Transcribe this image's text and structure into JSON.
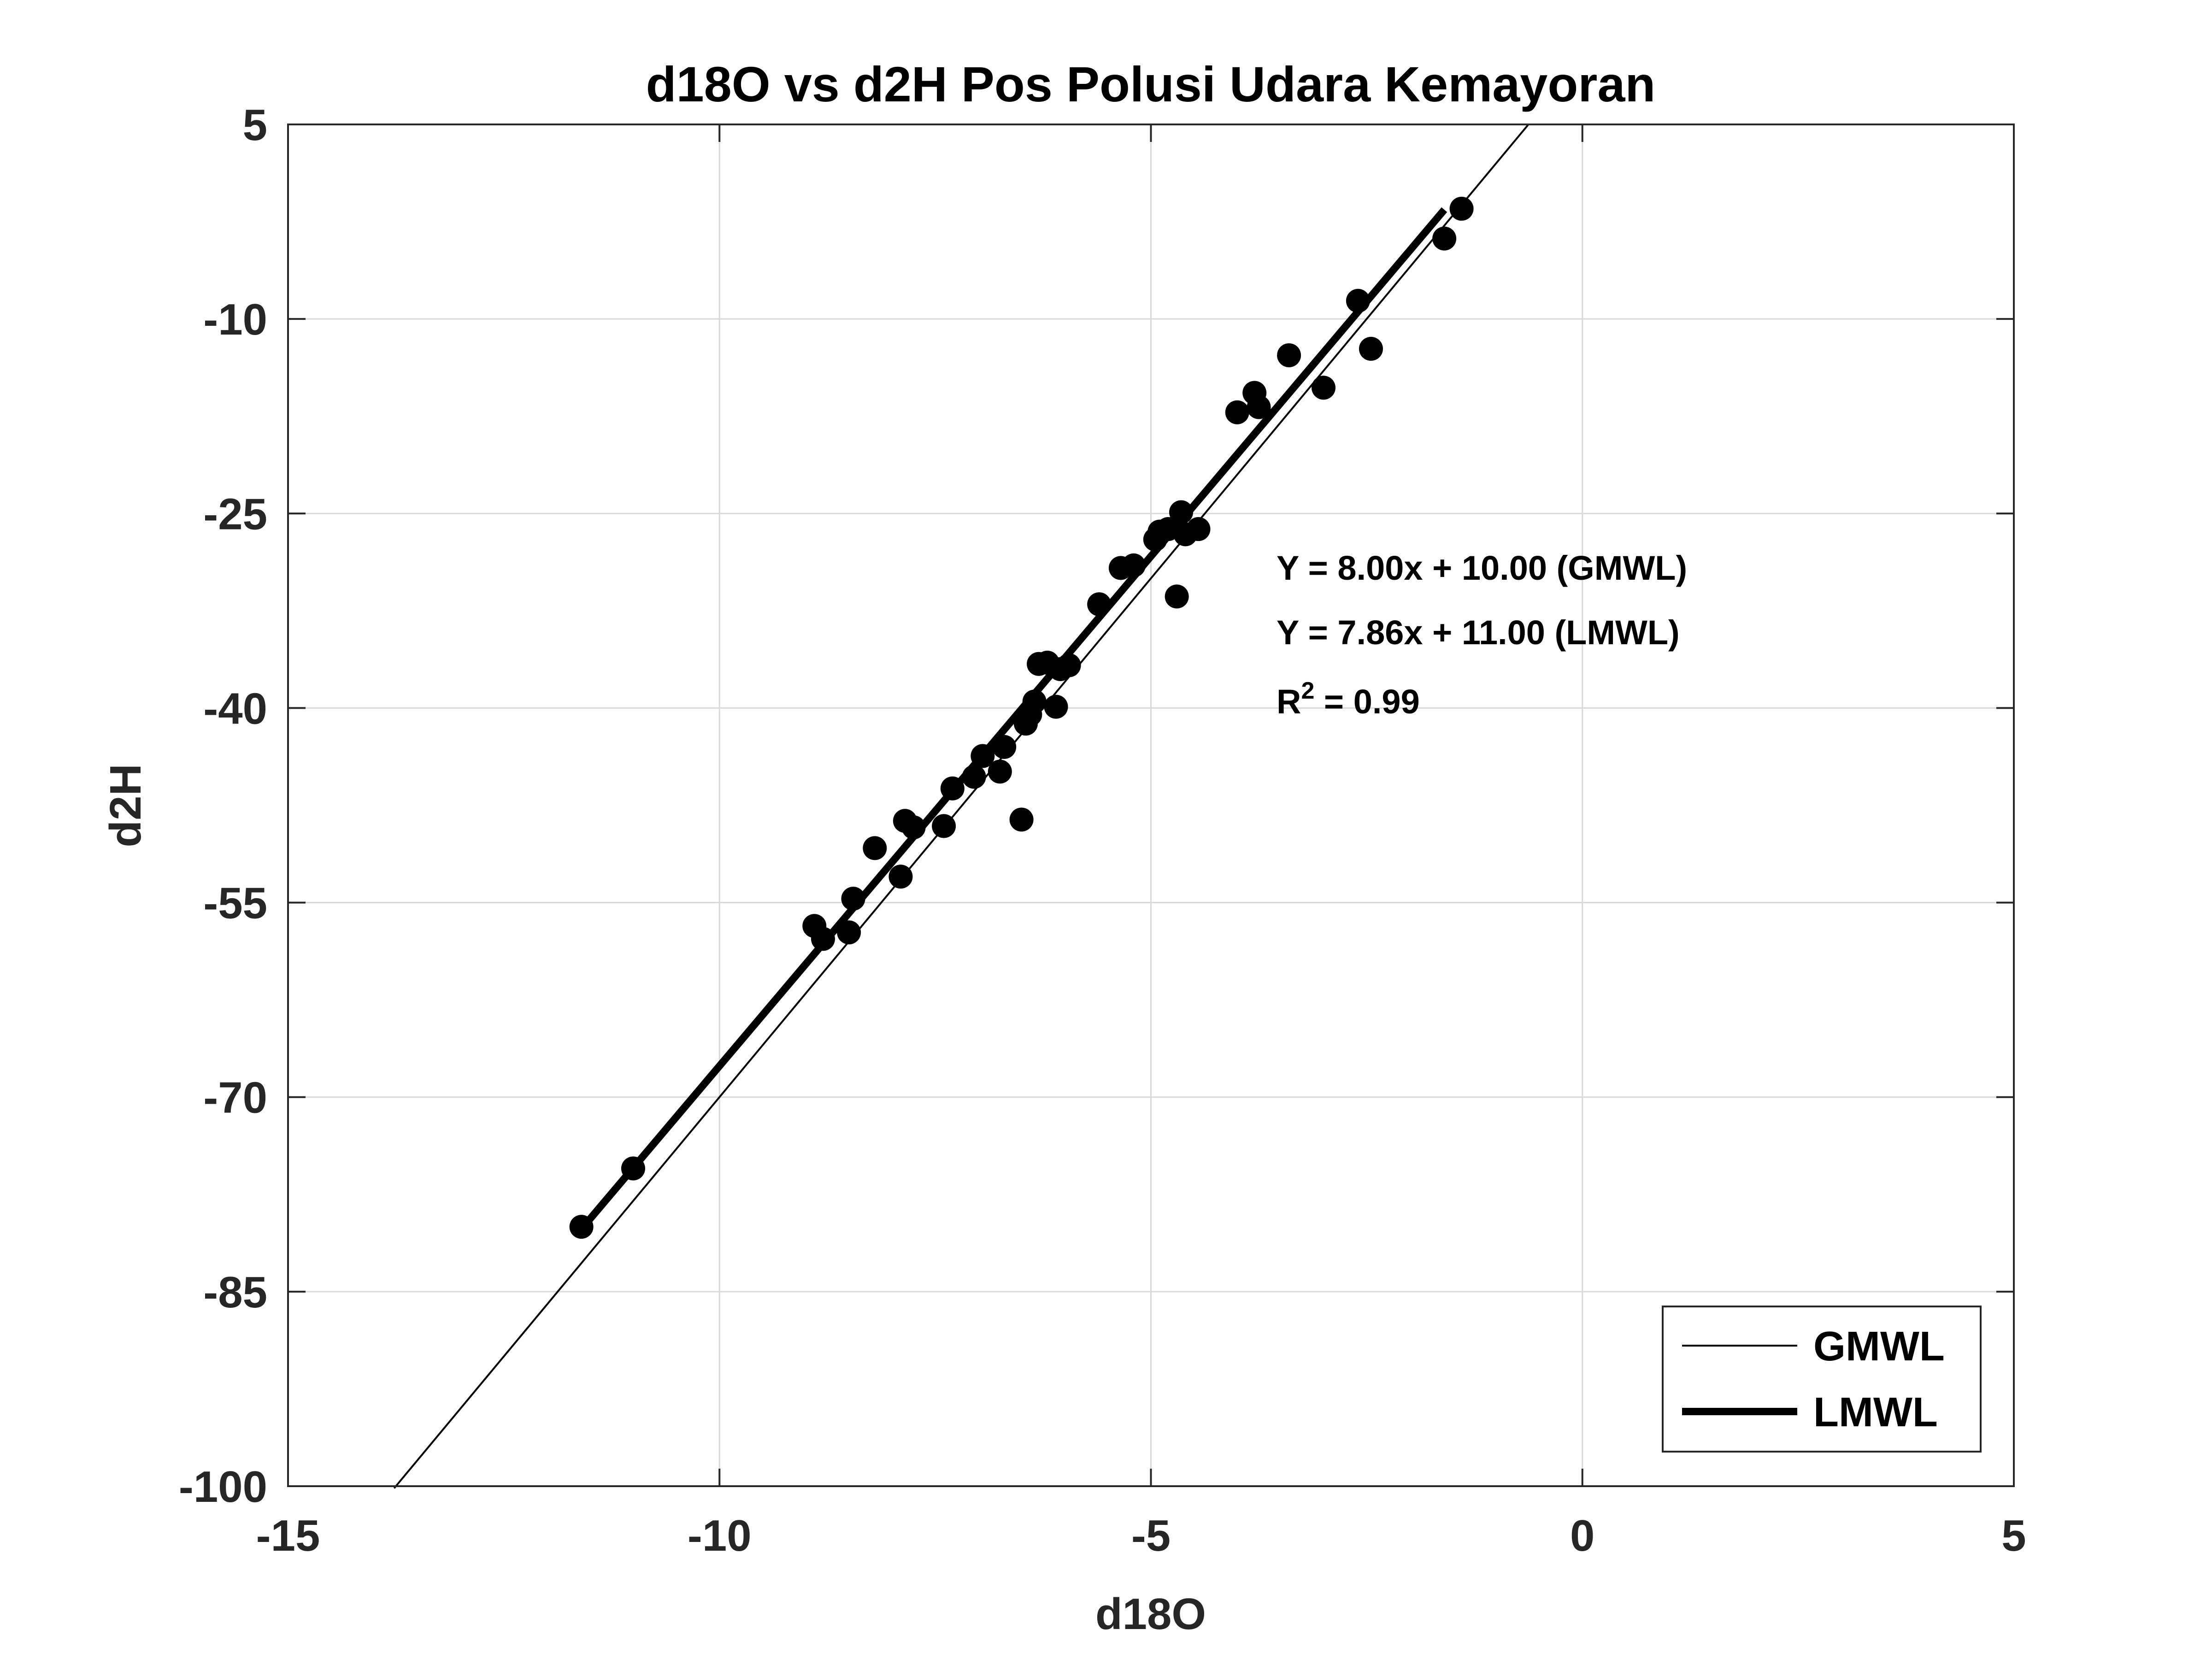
{
  "chart_data": {
    "type": "scatter",
    "title": "d18O vs d2H Pos Polusi Udara Kemayoran",
    "xlabel": "d18O",
    "ylabel": "d2H",
    "xlim": [
      -15,
      5
    ],
    "ylim": [
      -100,
      5
    ],
    "xticks": [
      -15,
      -10,
      -5,
      0,
      5
    ],
    "yticks": [
      -100,
      -85,
      -70,
      -55,
      -40,
      -25,
      -10,
      5
    ],
    "xtick_labels": [
      "-15",
      "-10",
      "-5",
      "0",
      "5"
    ],
    "ytick_labels": [
      "-100",
      "-85",
      "-70",
      "-55",
      "-40",
      "-25",
      "-10",
      "5"
    ],
    "grid": true,
    "legend_position": "bottom-right",
    "colors": {
      "marks": "#000000",
      "grid": "#d9d9d9",
      "axes": "#262626"
    },
    "points": {
      "x": [
        -11.6,
        -11.0,
        -8.9,
        -8.8,
        -8.5,
        -8.45,
        -8.2,
        -7.9,
        -7.85,
        -7.75,
        -7.4,
        -7.3,
        -7.05,
        -6.95,
        -6.75,
        -6.7,
        -6.5,
        -6.45,
        -6.4,
        -6.35,
        -6.3,
        -6.2,
        -6.1,
        -6.05,
        -5.95,
        -5.6,
        -5.35,
        -5.2,
        -4.95,
        -4.9,
        -4.8,
        -4.7,
        -4.65,
        -4.6,
        -4.45,
        -4.0,
        -3.8,
        -3.75,
        -3.4,
        -3.0,
        -2.6,
        -2.45,
        -1.6,
        -1.4
      ],
      "y": [
        -80.0,
        -75.5,
        -56.8,
        -57.8,
        -57.3,
        -54.7,
        -50.8,
        -53.0,
        -48.7,
        -49.2,
        -49.1,
        -46.2,
        -45.3,
        -43.7,
        -44.9,
        -43.0,
        -48.6,
        -41.2,
        -40.5,
        -39.5,
        -36.6,
        -36.5,
        -39.9,
        -37.0,
        -36.7,
        -32.0,
        -29.2,
        -29.0,
        -27.0,
        -26.4,
        -26.2,
        -31.4,
        -24.9,
        -26.6,
        -26.2,
        -17.2,
        -15.7,
        -16.8,
        -12.8,
        -15.3,
        -8.6,
        -12.3,
        -3.8,
        -1.5
      ]
    },
    "series": [
      {
        "name": "GMWL",
        "slope": 8.0,
        "intercept": 10.0,
        "x_range": [
          -13.77,
          -0.63
        ],
        "line_width": "thin"
      },
      {
        "name": "LMWL",
        "slope": 7.86,
        "intercept": 11.0,
        "x_range": [
          -11.6,
          -1.6
        ],
        "line_width": "thick"
      }
    ],
    "annotations": [
      {
        "prefix": "Y = 8.00x + 10.00 (GMWL)",
        "sup": ""
      },
      {
        "prefix": "Y = 7.86x + 11.00 (LMWL)",
        "sup": ""
      },
      {
        "prefix": "R",
        "sup": "2",
        "suffix": " = 0.99"
      }
    ]
  }
}
